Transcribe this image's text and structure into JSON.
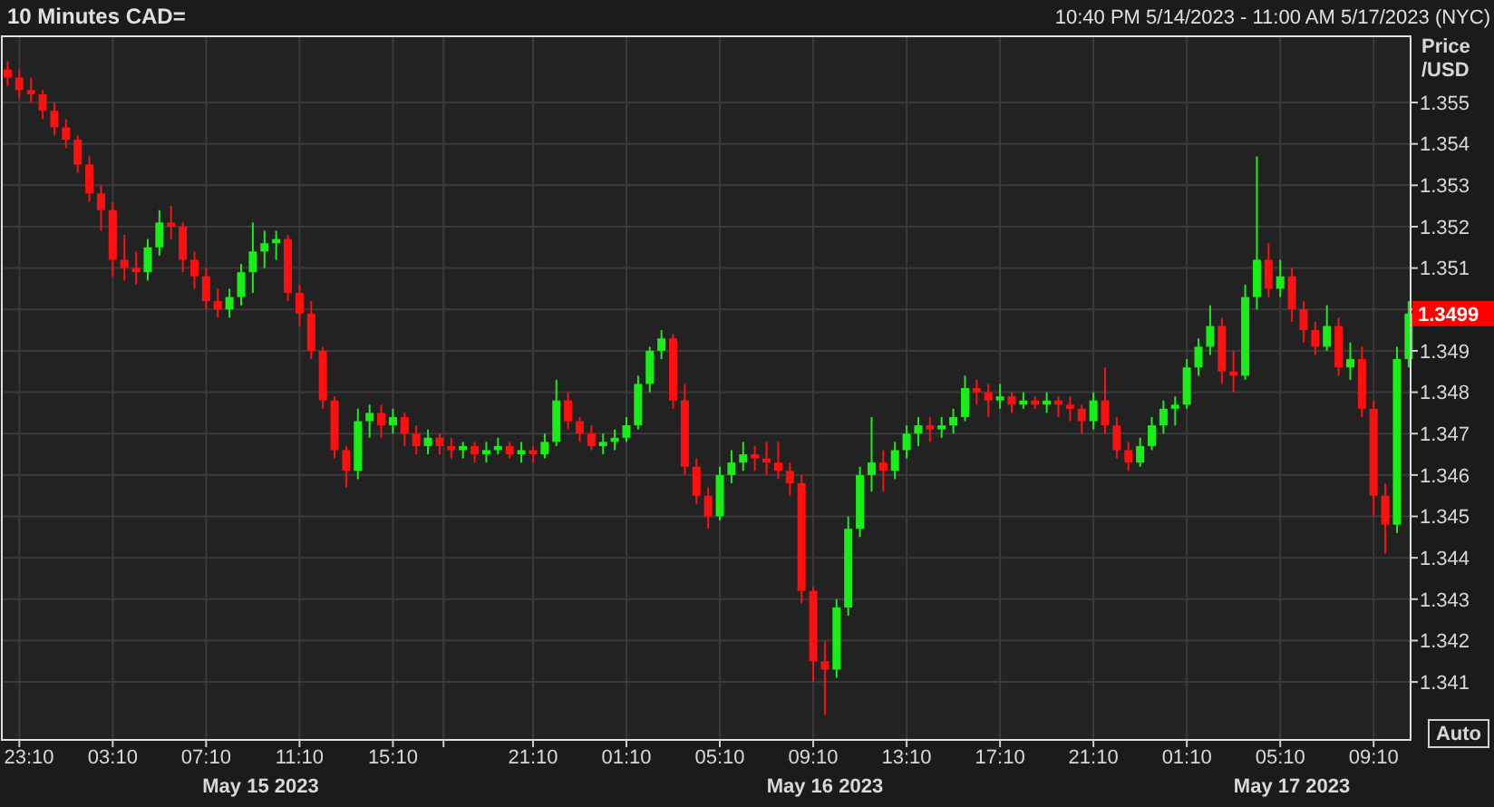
{
  "chart_data": {
    "type": "candlestick",
    "title": "10 Minutes CAD=",
    "subtitle": "10:40 PM 5/14/2023 - 11:00 AM 5/17/2023 (NYC)",
    "ylabel": "Price /USD",
    "x": [
      "2023-05-14T22:40",
      "2023-05-14T23:10",
      "2023-05-14T23:40",
      "2023-05-15T00:10",
      "2023-05-15T00:40",
      "2023-05-15T01:10",
      "2023-05-15T01:40",
      "2023-05-15T02:10",
      "2023-05-15T02:40",
      "2023-05-15T03:10",
      "2023-05-15T03:40",
      "2023-05-15T04:10",
      "2023-05-15T04:40",
      "2023-05-15T05:10",
      "2023-05-15T05:40",
      "2023-05-15T06:10",
      "2023-05-15T06:40",
      "2023-05-15T07:10",
      "2023-05-15T07:40",
      "2023-05-15T08:10",
      "2023-05-15T08:40",
      "2023-05-15T09:10",
      "2023-05-15T09:40",
      "2023-05-15T10:10",
      "2023-05-15T10:40",
      "2023-05-15T11:10",
      "2023-05-15T11:40",
      "2023-05-15T12:10",
      "2023-05-15T12:40",
      "2023-05-15T13:10",
      "2023-05-15T13:40",
      "2023-05-15T14:10",
      "2023-05-15T14:40",
      "2023-05-15T15:10",
      "2023-05-15T15:40",
      "2023-05-15T16:10",
      "2023-05-15T16:40",
      "2023-05-15T17:10",
      "2023-05-15T17:40",
      "2023-05-15T18:10",
      "2023-05-15T18:40",
      "2023-05-15T19:10",
      "2023-05-15T19:40",
      "2023-05-15T20:10",
      "2023-05-15T20:40",
      "2023-05-15T21:10",
      "2023-05-15T21:40",
      "2023-05-15T22:10",
      "2023-05-15T22:40",
      "2023-05-15T23:10",
      "2023-05-15T23:40",
      "2023-05-16T00:10",
      "2023-05-16T00:40",
      "2023-05-16T01:10",
      "2023-05-16T01:40",
      "2023-05-16T02:10",
      "2023-05-16T02:40",
      "2023-05-16T03:10",
      "2023-05-16T03:40",
      "2023-05-16T04:10",
      "2023-05-16T04:40",
      "2023-05-16T05:10",
      "2023-05-16T05:40",
      "2023-05-16T06:10",
      "2023-05-16T06:40",
      "2023-05-16T07:10",
      "2023-05-16T07:40",
      "2023-05-16T08:10",
      "2023-05-16T08:40",
      "2023-05-16T09:10",
      "2023-05-16T09:40",
      "2023-05-16T10:10",
      "2023-05-16T10:40",
      "2023-05-16T11:10",
      "2023-05-16T11:40",
      "2023-05-16T12:10",
      "2023-05-16T12:40",
      "2023-05-16T13:10",
      "2023-05-16T13:40",
      "2023-05-16T14:10",
      "2023-05-16T14:40",
      "2023-05-16T15:10",
      "2023-05-16T15:40",
      "2023-05-16T16:10",
      "2023-05-16T16:40",
      "2023-05-16T17:10",
      "2023-05-16T17:40",
      "2023-05-16T18:10",
      "2023-05-16T18:40",
      "2023-05-16T19:10",
      "2023-05-16T19:40",
      "2023-05-16T20:10",
      "2023-05-16T20:40",
      "2023-05-16T21:10",
      "2023-05-16T21:40",
      "2023-05-16T22:10",
      "2023-05-16T22:40",
      "2023-05-16T23:10",
      "2023-05-16T23:40",
      "2023-05-17T00:10",
      "2023-05-17T00:40",
      "2023-05-17T01:10",
      "2023-05-17T01:40",
      "2023-05-17T02:10",
      "2023-05-17T02:40",
      "2023-05-17T03:10",
      "2023-05-17T03:40",
      "2023-05-17T04:10",
      "2023-05-17T04:40",
      "2023-05-17T05:10",
      "2023-05-17T05:40",
      "2023-05-17T06:10",
      "2023-05-17T06:40",
      "2023-05-17T07:10",
      "2023-05-17T07:40",
      "2023-05-17T08:10",
      "2023-05-17T08:40",
      "2023-05-17T09:10",
      "2023-05-17T09:40",
      "2023-05-17T10:10",
      "2023-05-17T10:40"
    ],
    "ohlc": [
      [
        1.3558,
        1.356,
        1.3554,
        1.3556
      ],
      [
        1.3556,
        1.3558,
        1.3551,
        1.3553
      ],
      [
        1.3553,
        1.3556,
        1.355,
        1.3552
      ],
      [
        1.3552,
        1.3553,
        1.3546,
        1.3548
      ],
      [
        1.3548,
        1.355,
        1.3542,
        1.3544
      ],
      [
        1.3544,
        1.3546,
        1.3539,
        1.3541
      ],
      [
        1.3541,
        1.3542,
        1.3533,
        1.3535
      ],
      [
        1.3535,
        1.3537,
        1.3526,
        1.3528
      ],
      [
        1.3528,
        1.353,
        1.3519,
        1.3524
      ],
      [
        1.3524,
        1.3526,
        1.3508,
        1.3512
      ],
      [
        1.3512,
        1.3518,
        1.3507,
        1.351
      ],
      [
        1.351,
        1.3514,
        1.3506,
        1.3509
      ],
      [
        1.3509,
        1.3517,
        1.3507,
        1.3515
      ],
      [
        1.3515,
        1.3524,
        1.3513,
        1.3521
      ],
      [
        1.3521,
        1.3525,
        1.3517,
        1.352
      ],
      [
        1.352,
        1.3521,
        1.3509,
        1.3512
      ],
      [
        1.3512,
        1.3514,
        1.3505,
        1.3508
      ],
      [
        1.3508,
        1.351,
        1.35,
        1.3502
      ],
      [
        1.3502,
        1.3505,
        1.3498,
        1.35
      ],
      [
        1.35,
        1.3505,
        1.3498,
        1.3503
      ],
      [
        1.3503,
        1.3511,
        1.3501,
        1.3509
      ],
      [
        1.3509,
        1.3521,
        1.3504,
        1.3514
      ],
      [
        1.3514,
        1.3519,
        1.351,
        1.3516
      ],
      [
        1.3516,
        1.3519,
        1.3512,
        1.3517
      ],
      [
        1.3517,
        1.3518,
        1.3502,
        1.3504
      ],
      [
        1.3504,
        1.3506,
        1.3496,
        1.3499
      ],
      [
        1.3499,
        1.3502,
        1.3488,
        1.349
      ],
      [
        1.349,
        1.3491,
        1.3476,
        1.3478
      ],
      [
        1.3478,
        1.3479,
        1.3464,
        1.3466
      ],
      [
        1.3466,
        1.3467,
        1.3457,
        1.3461
      ],
      [
        1.3461,
        1.3476,
        1.3459,
        1.3473
      ],
      [
        1.3473,
        1.3477,
        1.3469,
        1.3475
      ],
      [
        1.3475,
        1.3477,
        1.3469,
        1.3472
      ],
      [
        1.3472,
        1.3476,
        1.347,
        1.3474
      ],
      [
        1.3474,
        1.3475,
        1.3467,
        1.347
      ],
      [
        1.347,
        1.3472,
        1.3465,
        1.3467
      ],
      [
        1.3467,
        1.3471,
        1.3465,
        1.3469
      ],
      [
        1.3469,
        1.347,
        1.3465,
        1.3467
      ],
      [
        1.3467,
        1.3469,
        1.3464,
        1.3466
      ],
      [
        1.3466,
        1.3468,
        1.3464,
        1.3467
      ],
      [
        1.3467,
        1.3468,
        1.3463,
        1.3465
      ],
      [
        1.3465,
        1.3468,
        1.3463,
        1.3466
      ],
      [
        1.3466,
        1.3469,
        1.3465,
        1.3467
      ],
      [
        1.3467,
        1.3468,
        1.3464,
        1.3465
      ],
      [
        1.3465,
        1.3468,
        1.3463,
        1.3466
      ],
      [
        1.3466,
        1.3467,
        1.3463,
        1.3465
      ],
      [
        1.3465,
        1.347,
        1.3464,
        1.3468
      ],
      [
        1.3468,
        1.3483,
        1.3467,
        1.3478
      ],
      [
        1.3478,
        1.348,
        1.3471,
        1.3473
      ],
      [
        1.3473,
        1.3474,
        1.3468,
        1.347
      ],
      [
        1.347,
        1.3472,
        1.3466,
        1.3467
      ],
      [
        1.3467,
        1.347,
        1.3465,
        1.3468
      ],
      [
        1.3468,
        1.3471,
        1.3466,
        1.3469
      ],
      [
        1.3469,
        1.3474,
        1.3468,
        1.3472
      ],
      [
        1.3472,
        1.3484,
        1.3471,
        1.3482
      ],
      [
        1.3482,
        1.3491,
        1.348,
        1.349
      ],
      [
        1.349,
        1.3495,
        1.3488,
        1.3493
      ],
      [
        1.3493,
        1.3494,
        1.3476,
        1.3478
      ],
      [
        1.3478,
        1.3482,
        1.346,
        1.3462
      ],
      [
        1.3462,
        1.3464,
        1.3453,
        1.3455
      ],
      [
        1.3455,
        1.3457,
        1.3447,
        1.345
      ],
      [
        1.345,
        1.3462,
        1.3449,
        1.346
      ],
      [
        1.346,
        1.3466,
        1.3458,
        1.3463
      ],
      [
        1.3463,
        1.3468,
        1.3461,
        1.3465
      ],
      [
        1.3465,
        1.3467,
        1.3461,
        1.3464
      ],
      [
        1.3464,
        1.3468,
        1.346,
        1.3463
      ],
      [
        1.3463,
        1.3468,
        1.3459,
        1.3461
      ],
      [
        1.3461,
        1.3463,
        1.3455,
        1.3458
      ],
      [
        1.3458,
        1.346,
        1.3429,
        1.3432
      ],
      [
        1.3432,
        1.3433,
        1.341,
        1.3415
      ],
      [
        1.3415,
        1.342,
        1.3402,
        1.3413
      ],
      [
        1.3413,
        1.343,
        1.3411,
        1.3428
      ],
      [
        1.3428,
        1.345,
        1.3426,
        1.3447
      ],
      [
        1.3447,
        1.3462,
        1.3445,
        1.346
      ],
      [
        1.346,
        1.3474,
        1.3456,
        1.3463
      ],
      [
        1.3463,
        1.3466,
        1.3456,
        1.3461
      ],
      [
        1.3461,
        1.3468,
        1.3459,
        1.3466
      ],
      [
        1.3466,
        1.3472,
        1.3464,
        1.347
      ],
      [
        1.347,
        1.3474,
        1.3467,
        1.3472
      ],
      [
        1.3472,
        1.3474,
        1.3468,
        1.3471
      ],
      [
        1.3471,
        1.3474,
        1.3469,
        1.3472
      ],
      [
        1.3472,
        1.3476,
        1.347,
        1.3474
      ],
      [
        1.3474,
        1.3484,
        1.3473,
        1.3481
      ],
      [
        1.3481,
        1.3483,
        1.3477,
        1.348
      ],
      [
        1.348,
        1.3482,
        1.3474,
        1.3478
      ],
      [
        1.3478,
        1.3482,
        1.3476,
        1.3479
      ],
      [
        1.3479,
        1.348,
        1.3475,
        1.3477
      ],
      [
        1.3477,
        1.348,
        1.3476,
        1.3478
      ],
      [
        1.3478,
        1.3479,
        1.3476,
        1.3477
      ],
      [
        1.3477,
        1.348,
        1.3475,
        1.3478
      ],
      [
        1.3478,
        1.3479,
        1.3474,
        1.3477
      ],
      [
        1.3477,
        1.3479,
        1.3473,
        1.3476
      ],
      [
        1.3476,
        1.3477,
        1.347,
        1.3473
      ],
      [
        1.3473,
        1.348,
        1.3471,
        1.3478
      ],
      [
        1.3478,
        1.3486,
        1.347,
        1.3472
      ],
      [
        1.3472,
        1.3474,
        1.3464,
        1.3466
      ],
      [
        1.3466,
        1.3468,
        1.3461,
        1.3463
      ],
      [
        1.3463,
        1.3469,
        1.3462,
        1.3467
      ],
      [
        1.3467,
        1.3474,
        1.3466,
        1.3472
      ],
      [
        1.3472,
        1.3478,
        1.347,
        1.3476
      ],
      [
        1.3476,
        1.3479,
        1.3472,
        1.3477
      ],
      [
        1.3477,
        1.3488,
        1.3476,
        1.3486
      ],
      [
        1.3486,
        1.3493,
        1.3484,
        1.3491
      ],
      [
        1.3491,
        1.3501,
        1.3489,
        1.3496
      ],
      [
        1.3496,
        1.3498,
        1.3482,
        1.3485
      ],
      [
        1.3485,
        1.349,
        1.348,
        1.3484
      ],
      [
        1.3484,
        1.3506,
        1.3483,
        1.3503
      ],
      [
        1.3503,
        1.3537,
        1.35,
        1.3512
      ],
      [
        1.3512,
        1.3516,
        1.3503,
        1.3505
      ],
      [
        1.3505,
        1.3512,
        1.3503,
        1.3508
      ],
      [
        1.3508,
        1.351,
        1.3497,
        1.35
      ],
      [
        1.35,
        1.3502,
        1.3492,
        1.3495
      ],
      [
        1.3495,
        1.3497,
        1.3489,
        1.3491
      ],
      [
        1.3491,
        1.3501,
        1.349,
        1.3496
      ],
      [
        1.3496,
        1.3498,
        1.3484,
        1.3486
      ],
      [
        1.3486,
        1.3492,
        1.3483,
        1.3488
      ],
      [
        1.3488,
        1.3491,
        1.3474,
        1.3476
      ],
      [
        1.3476,
        1.3478,
        1.345,
        1.3455
      ],
      [
        1.3455,
        1.3458,
        1.3441,
        1.3448
      ],
      [
        1.3448,
        1.3491,
        1.3446,
        1.3488
      ],
      [
        1.3488,
        1.3502,
        1.3486,
        1.3499
      ]
    ],
    "xlim": [
      "2023-05-14T22:25",
      "2023-05-17T10:45"
    ],
    "xticks": [
      {
        "value": "2023-05-14T23:10",
        "label": "23:10"
      },
      {
        "value": "2023-05-15T03:10",
        "label": "03:10"
      },
      {
        "value": "2023-05-15T07:10",
        "label": "07:10"
      },
      {
        "value": "2023-05-15T11:10",
        "label": "11:10"
      },
      {
        "value": "2023-05-15T15:10",
        "label": "15:10"
      },
      {
        "value": "2023-05-15T17:20",
        "label": null
      },
      {
        "value": "2023-05-15T21:10",
        "label": "21:10"
      },
      {
        "value": "2023-05-16T01:10",
        "label": "01:10"
      },
      {
        "value": "2023-05-16T05:10",
        "label": "05:10"
      },
      {
        "value": "2023-05-16T09:10",
        "label": "09:10"
      },
      {
        "value": "2023-05-16T13:10",
        "label": "13:10"
      },
      {
        "value": "2023-05-16T17:10",
        "label": "17:10"
      },
      {
        "value": "2023-05-16T21:10",
        "label": "21:10"
      },
      {
        "value": "2023-05-17T01:10",
        "label": "01:10"
      },
      {
        "value": "2023-05-17T05:10",
        "label": "05:10"
      },
      {
        "value": "2023-05-17T09:10",
        "label": "09:10"
      }
    ],
    "x2lim": [
      "2023-05-14T22:25",
      "2023-05-17T10:45"
    ],
    "x2ticks": [
      {
        "value": "2023-05-15T09:30",
        "label": "May 15 2023"
      },
      {
        "value": "2023-05-16T09:40",
        "label": "May 16 2023"
      },
      {
        "value": "2023-05-17T05:40",
        "label": "May 17 2023"
      }
    ],
    "ylim": [
      1.3396,
      1.3566
    ],
    "yticks": [
      1.341,
      1.342,
      1.343,
      1.344,
      1.345,
      1.346,
      1.347,
      1.348,
      1.349,
      {
        "value": 1.35,
        "label": null
      },
      1.351,
      1.352,
      1.353,
      1.354,
      1.355
    ],
    "annotations": [
      "1.3499",
      "Auto"
    ],
    "grid": true
  }
}
